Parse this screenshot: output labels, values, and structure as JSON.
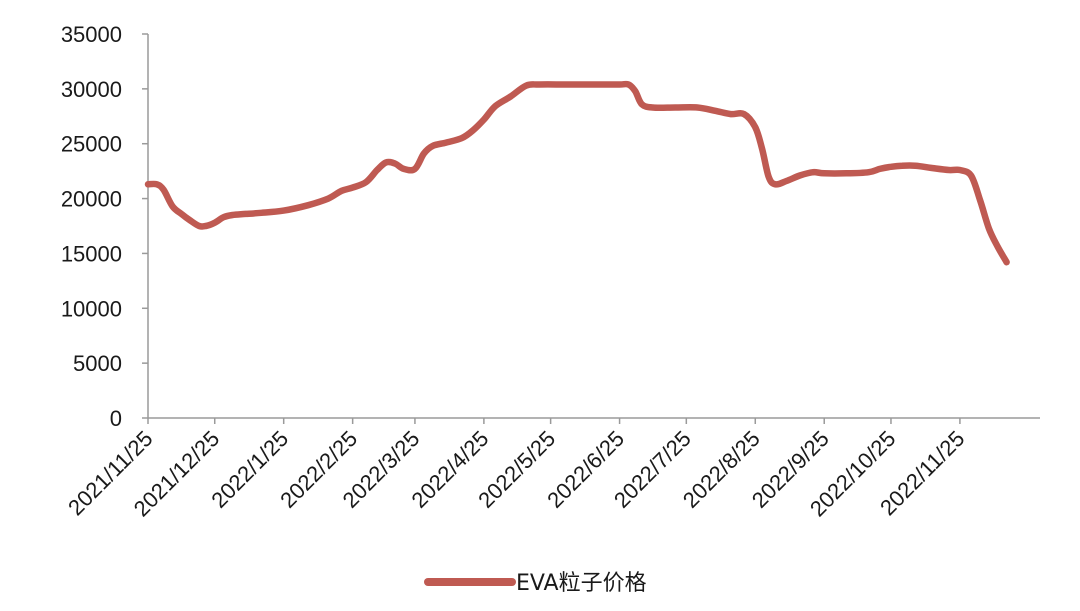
{
  "chart_data": {
    "type": "line",
    "title": "",
    "xlabel": "",
    "ylabel": "",
    "ylim": [
      0,
      35000
    ],
    "yticks": [
      0,
      5000,
      10000,
      15000,
      20000,
      25000,
      30000,
      35000
    ],
    "xlim": [
      "2021-11-25",
      "2022-12-31"
    ],
    "xticks": [
      {
        "date": "2021-11-25",
        "label": "2021/11/25"
      },
      {
        "date": "2021-12-25",
        "label": "2021/12/25"
      },
      {
        "date": "2022-01-25",
        "label": "2022/1/25"
      },
      {
        "date": "2022-02-25",
        "label": "2022/2/25"
      },
      {
        "date": "2022-03-25",
        "label": "2022/3/25"
      },
      {
        "date": "2022-04-25",
        "label": "2022/4/25"
      },
      {
        "date": "2022-05-25",
        "label": "2022/5/25"
      },
      {
        "date": "2022-06-25",
        "label": "2022/6/25"
      },
      {
        "date": "2022-07-25",
        "label": "2022/7/25"
      },
      {
        "date": "2022-08-25",
        "label": "2022/8/25"
      },
      {
        "date": "2022-09-25",
        "label": "2022/9/25"
      },
      {
        "date": "2022-10-25",
        "label": "2022/10/25"
      },
      {
        "date": "2022-11-25",
        "label": "2022/11/25"
      }
    ],
    "grid": false,
    "legend_position": "bottom",
    "series": [
      {
        "name": "EVA粒子价格",
        "color": "#bf5a52",
        "points": [
          [
            "2021-11-25",
            21300
          ],
          [
            "2021-11-29",
            21300
          ],
          [
            "2021-12-02",
            20800
          ],
          [
            "2021-12-06",
            19300
          ],
          [
            "2021-12-10",
            18600
          ],
          [
            "2021-12-14",
            18000
          ],
          [
            "2021-12-18",
            17500
          ],
          [
            "2021-12-21",
            17500
          ],
          [
            "2021-12-25",
            17800
          ],
          [
            "2021-12-29",
            18300
          ],
          [
            "2022-01-02",
            18500
          ],
          [
            "2022-01-08",
            18600
          ],
          [
            "2022-01-15",
            18700
          ],
          [
            "2022-01-25",
            18900
          ],
          [
            "2022-02-05",
            19400
          ],
          [
            "2022-02-14",
            20000
          ],
          [
            "2022-02-20",
            20700
          ],
          [
            "2022-02-25",
            21000
          ],
          [
            "2022-03-03",
            21500
          ],
          [
            "2022-03-08",
            22600
          ],
          [
            "2022-03-12",
            23300
          ],
          [
            "2022-03-16",
            23200
          ],
          [
            "2022-03-20",
            22700
          ],
          [
            "2022-03-25",
            22700
          ],
          [
            "2022-03-29",
            24100
          ],
          [
            "2022-04-02",
            24800
          ],
          [
            "2022-04-08",
            25100
          ],
          [
            "2022-04-15",
            25500
          ],
          [
            "2022-04-20",
            26200
          ],
          [
            "2022-04-25",
            27200
          ],
          [
            "2022-04-30",
            28400
          ],
          [
            "2022-05-07",
            29300
          ],
          [
            "2022-05-14",
            30300
          ],
          [
            "2022-05-20",
            30400
          ],
          [
            "2022-06-01",
            30400
          ],
          [
            "2022-06-15",
            30400
          ],
          [
            "2022-06-25",
            30400
          ],
          [
            "2022-06-29",
            30400
          ],
          [
            "2022-07-02",
            29800
          ],
          [
            "2022-07-05",
            28600
          ],
          [
            "2022-07-10",
            28300
          ],
          [
            "2022-07-20",
            28300
          ],
          [
            "2022-07-30",
            28300
          ],
          [
            "2022-08-07",
            28000
          ],
          [
            "2022-08-14",
            27700
          ],
          [
            "2022-08-20",
            27700
          ],
          [
            "2022-08-25",
            26500
          ],
          [
            "2022-08-28",
            24600
          ],
          [
            "2022-08-31",
            22000
          ],
          [
            "2022-09-03",
            21300
          ],
          [
            "2022-09-08",
            21600
          ],
          [
            "2022-09-14",
            22100
          ],
          [
            "2022-09-20",
            22400
          ],
          [
            "2022-09-25",
            22300
          ],
          [
            "2022-10-05",
            22300
          ],
          [
            "2022-10-15",
            22400
          ],
          [
            "2022-10-20",
            22700
          ],
          [
            "2022-10-25",
            22900
          ],
          [
            "2022-10-30",
            23000
          ],
          [
            "2022-11-05",
            23000
          ],
          [
            "2022-11-12",
            22800
          ],
          [
            "2022-11-20",
            22600
          ],
          [
            "2022-11-25",
            22600
          ],
          [
            "2022-11-30",
            22100
          ],
          [
            "2022-12-04",
            19900
          ],
          [
            "2022-12-08",
            17300
          ],
          [
            "2022-12-12",
            15600
          ],
          [
            "2022-12-16",
            14200
          ]
        ]
      }
    ]
  }
}
